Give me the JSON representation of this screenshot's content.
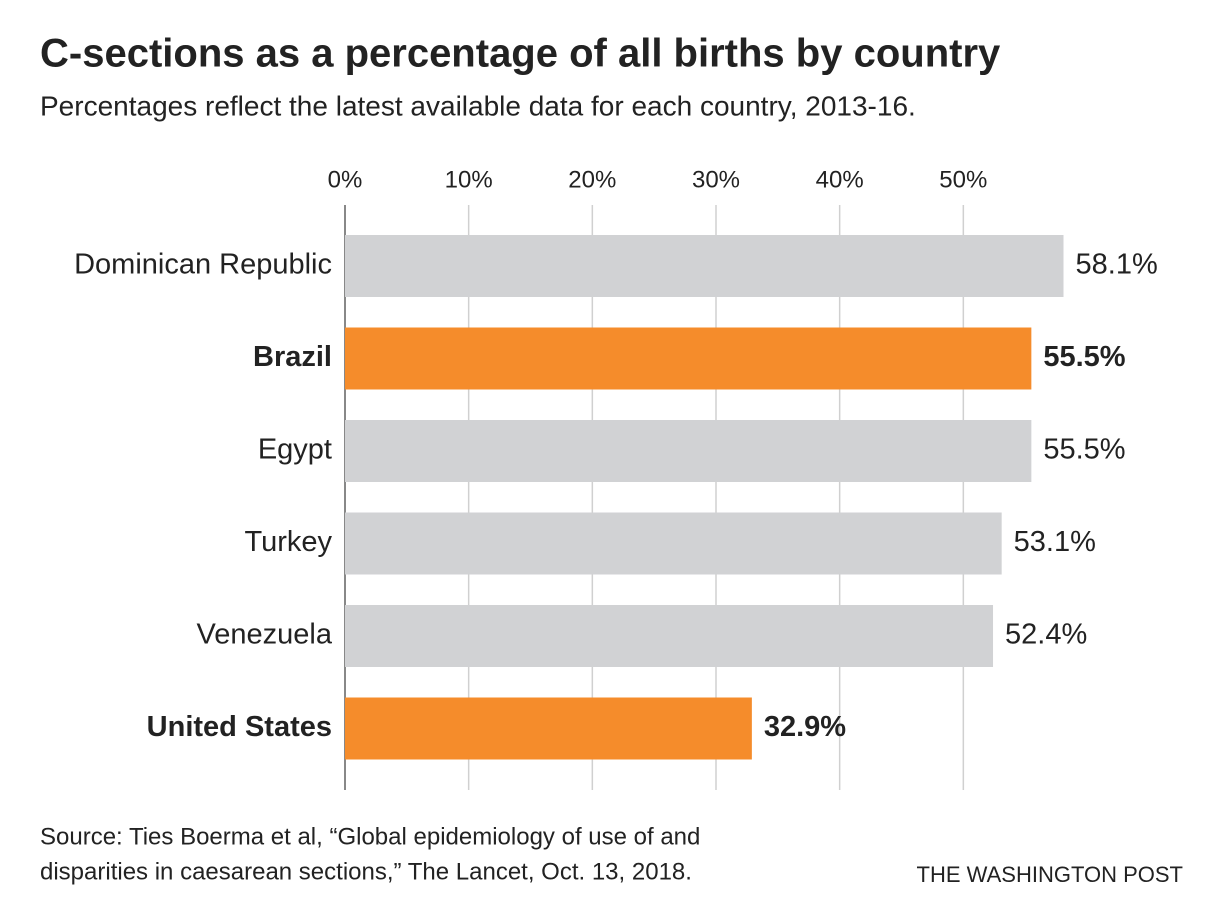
{
  "chart_data": {
    "type": "bar",
    "orientation": "horizontal",
    "title": "C-sections as a percentage of all births by country",
    "subtitle": "Percentages reflect the latest available data for each country, 2013-16.",
    "categories": [
      "Dominican Republic",
      "Brazil",
      "Egypt",
      "Turkey",
      "Venezuela",
      "United States"
    ],
    "values": [
      58.1,
      55.5,
      55.5,
      53.1,
      52.4,
      32.9
    ],
    "value_labels": [
      "58.1%",
      "55.5%",
      "55.5%",
      "53.1%",
      "52.4%",
      "32.9%"
    ],
    "color": "#d1d2d4",
    "highlight_color": "#f58c2b",
    "highlight": [
      false,
      true,
      false,
      false,
      false,
      true
    ],
    "xlim": [
      0,
      60
    ],
    "xticks": [
      {
        "value": 0,
        "label": "0%"
      },
      {
        "value": 10,
        "label": "10%"
      },
      {
        "value": 20,
        "label": "20%"
      },
      {
        "value": 30,
        "label": "30%"
      },
      {
        "value": 40,
        "label": "40%"
      },
      {
        "value": 50,
        "label": "50%"
      }
    ],
    "grid": true,
    "source": [
      "Source: Ties Boerma et al, “Global epidemiology of use of and",
      "disparities in caesarean sections,” The Lancet, Oct. 13, 2018."
    ],
    "credit": "THE WASHINGTON POST"
  }
}
